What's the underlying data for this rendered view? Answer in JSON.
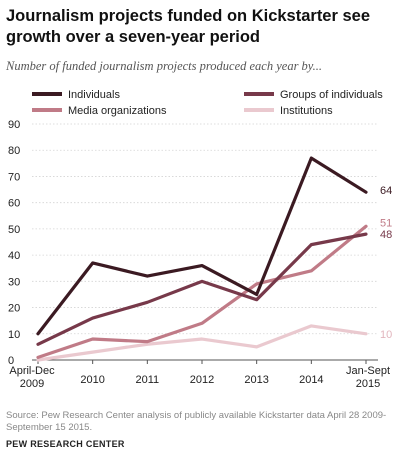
{
  "title": "Journalism projects funded on Kickstarter see growth over a seven-year period",
  "subtitle": "Number of funded journalism projects produced each year by...",
  "source": "Source: Pew Research Center analysis of publicly available Kickstarter data April 28 2009-September 15 2015.",
  "brand": "PEW RESEARCH CENTER",
  "chart_data": {
    "type": "line",
    "categories": [
      [
        "April-Dec",
        "2009"
      ],
      [
        "2010"
      ],
      [
        "2011"
      ],
      [
        "2012"
      ],
      [
        "2013"
      ],
      [
        "2014"
      ],
      [
        "Jan-Sept",
        "2015"
      ]
    ],
    "ylim": [
      0,
      90
    ],
    "yticks": [
      0,
      10,
      20,
      30,
      40,
      50,
      60,
      70,
      80,
      90
    ],
    "grid": true,
    "series": [
      {
        "name": "Individuals",
        "color": "#3b1a22",
        "values": [
          10,
          37,
          32,
          36,
          25,
          77,
          64
        ],
        "end_label": "64"
      },
      {
        "name": "Groups of individuals",
        "color": "#77394a",
        "values": [
          6,
          16,
          22,
          30,
          23,
          44,
          48
        ],
        "end_label": "48"
      },
      {
        "name": "Media organizations",
        "color": "#c07b87",
        "values": [
          1,
          8,
          7,
          14,
          29,
          34,
          51
        ],
        "end_label": "51"
      },
      {
        "name": "Institutions",
        "color": "#eac9cf",
        "values": [
          0,
          3,
          6,
          8,
          5,
          13,
          10
        ],
        "end_label": "10"
      }
    ]
  }
}
